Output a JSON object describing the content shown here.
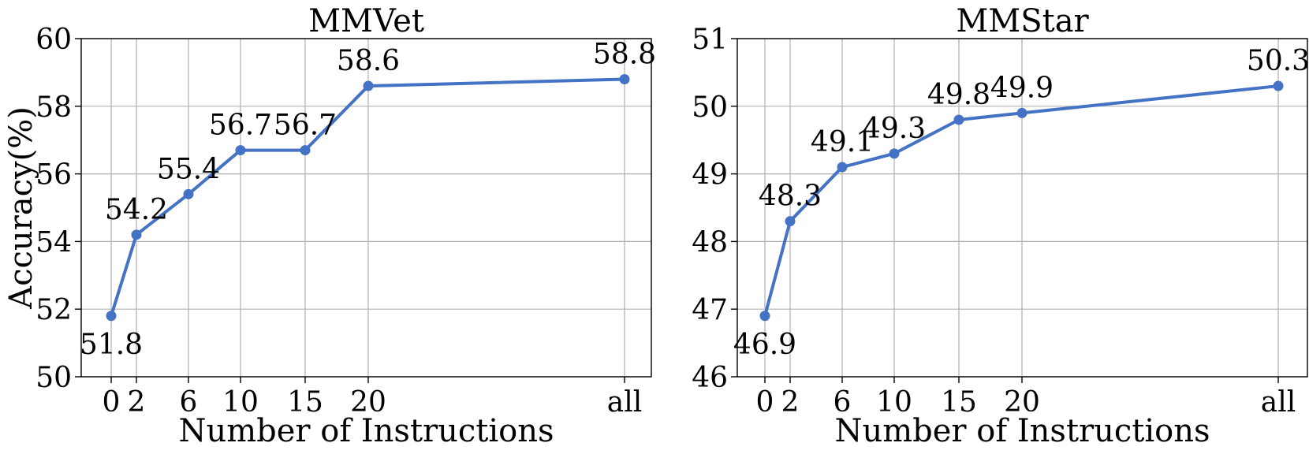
{
  "colors": {
    "line": "#4472C4",
    "grid": "#b0b0b0",
    "axes": "#000000"
  },
  "chart_data": [
    {
      "type": "line",
      "title": "MMVet",
      "xlabel": "Number of Instructions",
      "ylabel": "Accuracy(%)",
      "x": [
        "0",
        "2",
        "6",
        "10",
        "15",
        "20",
        "all"
      ],
      "values": [
        51.8,
        54.2,
        55.4,
        56.7,
        56.7,
        58.6,
        58.8
      ],
      "data_labels": [
        "51.8",
        "54.2",
        "55.4",
        "56.7",
        "56.7",
        "58.6",
        "58.8"
      ],
      "ylim": [
        50,
        60
      ],
      "yticks": [
        "50",
        "52",
        "54",
        "56",
        "58",
        "60"
      ],
      "grid": true,
      "marker": "circle"
    },
    {
      "type": "line",
      "title": "MMStar",
      "xlabel": "Number of Instructions",
      "ylabel": "",
      "x": [
        "0",
        "2",
        "6",
        "10",
        "15",
        "20",
        "all"
      ],
      "values": [
        46.9,
        48.3,
        49.1,
        49.3,
        49.8,
        49.9,
        50.3
      ],
      "data_labels": [
        "46.9",
        "48.3",
        "49.1",
        "49.3",
        "49.8",
        "49.9",
        "50.3"
      ],
      "ylim": [
        46,
        51
      ],
      "yticks": [
        "46",
        "47",
        "48",
        "49",
        "50",
        "51"
      ],
      "grid": true,
      "marker": "circle"
    }
  ]
}
